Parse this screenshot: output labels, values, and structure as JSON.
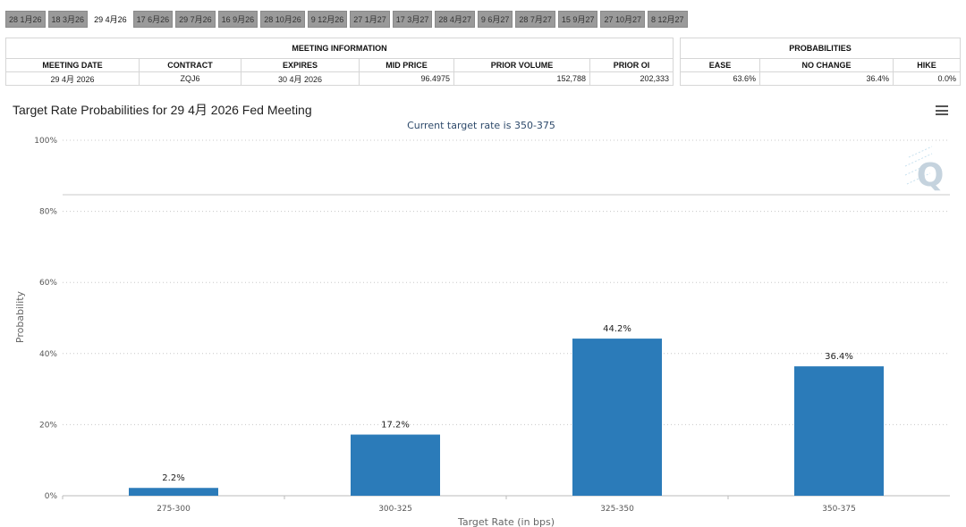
{
  "tabs": [
    "28 1月26",
    "18 3月26",
    "29 4月26",
    "17 6月26",
    "29 7月26",
    "16 9月26",
    "28 10月26",
    "9 12月26",
    "27 1月27",
    "17 3月27",
    "28 4月27",
    "9 6月27",
    "28 7月27",
    "15 9月27",
    "27 10月27",
    "8 12月27"
  ],
  "active_tab_index": 2,
  "meeting_info": {
    "caption": "MEETING INFORMATION",
    "headers": [
      "MEETING DATE",
      "CONTRACT",
      "EXPIRES",
      "MID PRICE",
      "PRIOR VOLUME",
      "PRIOR OI"
    ],
    "row": [
      "29 4月 2026",
      "ZQJ6",
      "30 4月 2026",
      "96.4975",
      "152,788",
      "202,333"
    ]
  },
  "probabilities": {
    "caption": "PROBABILITIES",
    "headers": [
      "EASE",
      "NO CHANGE",
      "HIKE"
    ],
    "row": [
      "63.6%",
      "36.4%",
      "0.0%"
    ]
  },
  "chart_title": "Target Rate Probabilities for 29 4月 2026 Fed Meeting",
  "chart_data": {
    "type": "bar",
    "subtitle": "Current target rate is 350-375",
    "categories": [
      "275-300",
      "300-325",
      "325-350",
      "350-375"
    ],
    "values": [
      2.2,
      17.2,
      44.2,
      36.4
    ],
    "data_labels": [
      "2.2%",
      "17.2%",
      "44.2%",
      "36.4%"
    ],
    "ylabel": "Probability",
    "xlabel": "Target Rate (in bps)",
    "ylim": [
      0,
      100
    ],
    "yticks": [
      0,
      20,
      40,
      60,
      80,
      100
    ],
    "ytick_labels": [
      "0%",
      "20%",
      "40%",
      "60%",
      "80%",
      "100%"
    ],
    "grid": "horizontal dotted",
    "bar_color": "#2b7bb9"
  }
}
